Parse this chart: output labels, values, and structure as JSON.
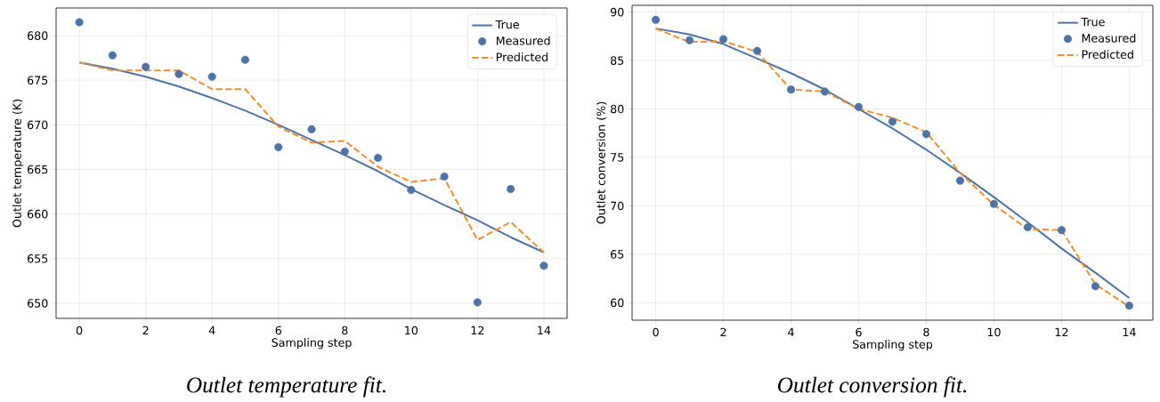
{
  "chart_data": [
    {
      "type": "line",
      "xlabel": "Sampling step",
      "ylabel": "Outlet temperature (K)",
      "x": [
        0,
        1,
        2,
        3,
        4,
        5,
        6,
        7,
        8,
        9,
        10,
        11,
        12,
        13,
        14
      ],
      "xlim": [
        -0.7,
        14.7
      ],
      "ylim": [
        648.3,
        683.1
      ],
      "xticks": [
        0,
        2,
        4,
        6,
        8,
        10,
        12,
        14
      ],
      "yticks": [
        650,
        655,
        660,
        665,
        670,
        675,
        680
      ],
      "grid": true,
      "legend": "top right",
      "series": [
        {
          "name": "True",
          "line_style": "solid",
          "color": "#4e74a6",
          "values": [
            677.0,
            676.3,
            675.4,
            674.3,
            673.0,
            671.6,
            670.0,
            668.3,
            666.6,
            664.8,
            662.8,
            661.0,
            659.3,
            657.4,
            655.7
          ]
        },
        {
          "name": "Measured",
          "type": "scatter",
          "marker": "circle",
          "color": "#4e74a6",
          "values": [
            681.5,
            677.8,
            676.5,
            675.7,
            675.4,
            677.3,
            667.5,
            669.5,
            667.0,
            666.3,
            662.7,
            664.2,
            650.1,
            662.8,
            654.2
          ]
        },
        {
          "name": "Predicted",
          "line_style": "dashed",
          "color": "#f28e2b",
          "values": [
            677.0,
            676.1,
            676.1,
            676.1,
            674.0,
            674.0,
            669.8,
            668.0,
            668.2,
            665.3,
            663.6,
            664.0,
            657.1,
            659.1,
            655.7
          ]
        }
      ],
      "annotations": [
        "*Outlet temperature fit.*"
      ]
    },
    {
      "type": "line",
      "xlabel": "Sampling step",
      "ylabel": "Outlet conversion (%)",
      "x": [
        0,
        1,
        2,
        3,
        4,
        5,
        6,
        7,
        8,
        9,
        10,
        11,
        12,
        13,
        14
      ],
      "xlim": [
        -0.7,
        14.7
      ],
      "ylim": [
        58.2,
        90.7
      ],
      "xticks": [
        0,
        2,
        4,
        6,
        8,
        10,
        12,
        14
      ],
      "yticks": [
        60,
        65,
        70,
        75,
        80,
        85,
        90
      ],
      "grid": true,
      "legend": "top right",
      "series": [
        {
          "name": "True",
          "line_style": "solid",
          "color": "#4e74a6",
          "values": [
            88.3,
            87.7,
            86.7,
            85.2,
            83.7,
            82.0,
            80.0,
            78.0,
            75.8,
            73.4,
            70.9,
            68.3,
            65.6,
            63.1,
            60.5
          ]
        },
        {
          "name": "Measured",
          "type": "scatter",
          "marker": "circle",
          "color": "#4e74a6",
          "values": [
            89.2,
            87.1,
            87.2,
            86.0,
            82.0,
            81.8,
            80.2,
            78.7,
            77.4,
            72.6,
            70.2,
            67.8,
            67.5,
            61.7,
            59.7
          ]
        },
        {
          "name": "Predicted",
          "line_style": "dashed",
          "color": "#f28e2b",
          "values": [
            88.3,
            86.9,
            87.0,
            85.9,
            82.0,
            81.8,
            80.0,
            79.1,
            77.6,
            73.4,
            70.1,
            67.6,
            67.5,
            61.9,
            59.6
          ]
        }
      ],
      "annotations": [
        "*Outlet conversion fit.*"
      ]
    }
  ]
}
